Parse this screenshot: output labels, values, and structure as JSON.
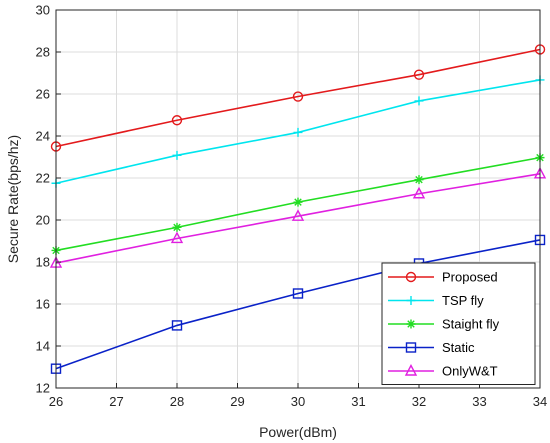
{
  "chart_data": {
    "type": "line",
    "xlabel": "Power(dBm)",
    "ylabel": "Secure Rate(bps/hz)",
    "xlim": [
      26,
      34
    ],
    "ylim": [
      12,
      30
    ],
    "xticks": [
      26,
      27,
      28,
      29,
      30,
      31,
      32,
      33,
      34
    ],
    "yticks": [
      12,
      14,
      16,
      18,
      20,
      22,
      24,
      26,
      28,
      30
    ],
    "grid": true,
    "legend_position": "bottom-right",
    "x": [
      26,
      28,
      30,
      32,
      34
    ],
    "series": [
      {
        "name": "Proposed",
        "values": [
          23.5,
          24.75,
          25.88,
          26.92,
          28.12
        ],
        "color": "#e31a1c",
        "marker": "circle"
      },
      {
        "name": "TSP fly",
        "values": [
          21.75,
          23.08,
          24.17,
          25.67,
          26.67
        ],
        "color": "#00e5ee",
        "marker": "plus"
      },
      {
        "name": "Staight fly",
        "values": [
          18.55,
          19.65,
          20.85,
          21.92,
          22.97
        ],
        "color": "#22dd22",
        "marker": "asterisk"
      },
      {
        "name": "Static",
        "values": [
          12.92,
          14.98,
          16.5,
          17.93,
          19.05
        ],
        "color": "#0a22c8",
        "marker": "square"
      },
      {
        "name": "OnlyW&T",
        "values": [
          17.95,
          19.12,
          20.18,
          21.25,
          22.2
        ],
        "color": "#e020e0",
        "marker": "triangle"
      }
    ]
  }
}
